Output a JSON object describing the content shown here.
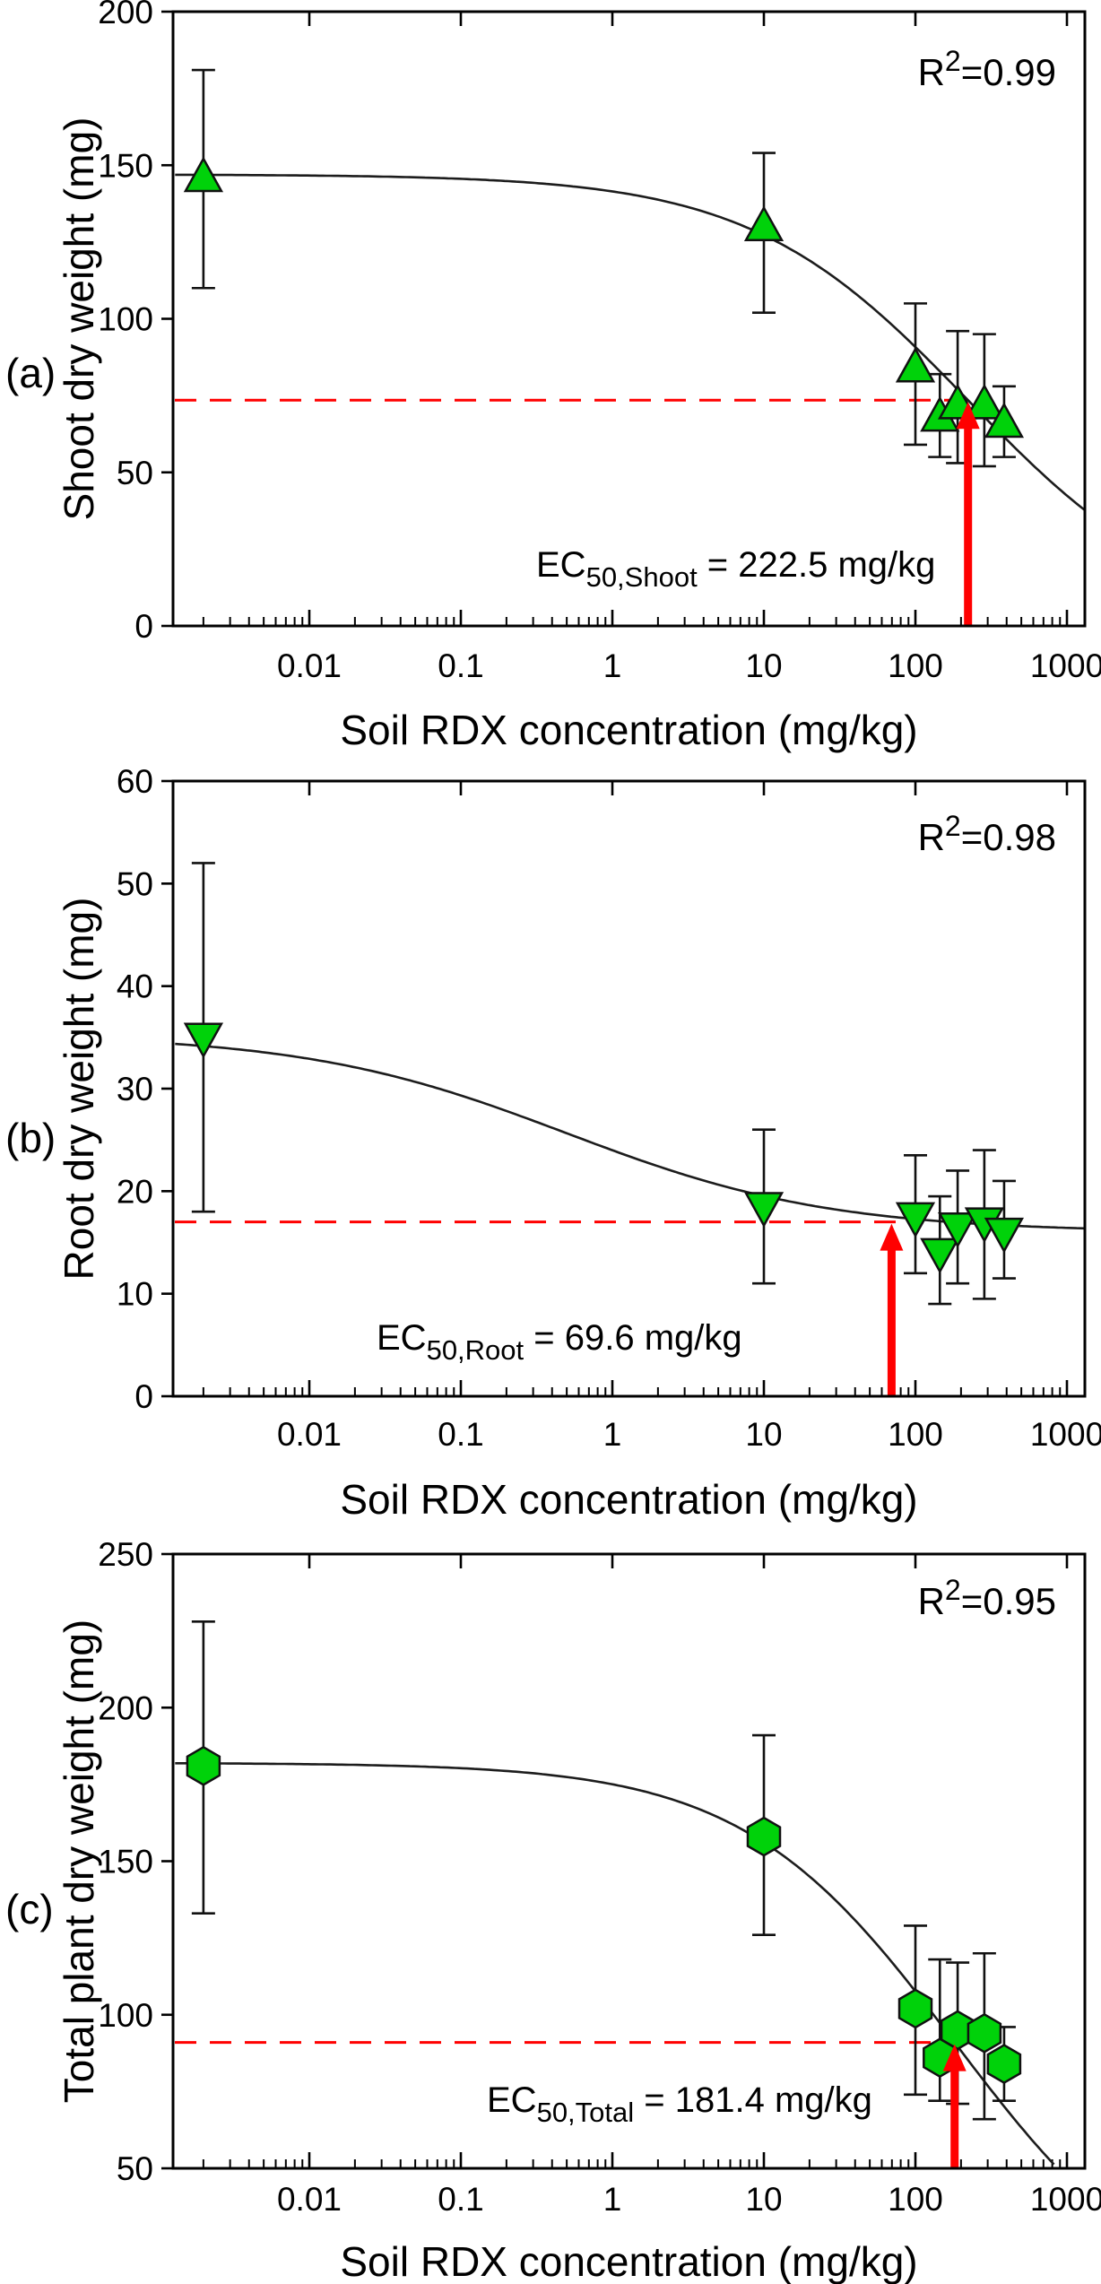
{
  "figure": {
    "description": "Three stacked dose-response scatter plots of plant dry weight vs soil RDX concentration",
    "background": "#ffffff"
  },
  "colors": {
    "marker_fill": "#00d20a",
    "marker_stroke": "#111111",
    "curve": "#1c1c1c",
    "dashed_line": "#ff0000",
    "arrow": "#ff0000",
    "frame": "#000000",
    "text": "#000000"
  },
  "chart_data": [
    {
      "panel": "a",
      "panel_label": "(a)",
      "type": "scatter",
      "x_scale": "log",
      "grid": false,
      "marker": "triangle-up",
      "r_squared": {
        "base": "R",
        "sup": "2",
        "rest": "=0.99"
      },
      "xlabel": "Soil RDX concentration (mg/kg)",
      "ylabel": "Shoot dry weight (mg)",
      "xlim": [
        0.0013,
        1300
      ],
      "ylim": [
        0,
        200
      ],
      "yticks": [
        0,
        50,
        100,
        150,
        200
      ],
      "xtick_values": [
        0.01,
        0.1,
        1,
        10,
        100,
        1000
      ],
      "xtick_labels": [
        "0.01",
        "0.1",
        "1",
        "10",
        "100",
        "1000"
      ],
      "points": [
        {
          "x": 0.002,
          "y": 146,
          "lo": 110,
          "hi": 181
        },
        {
          "x": 10,
          "y": 130,
          "lo": 102,
          "hi": 154
        },
        {
          "x": 100,
          "y": 84,
          "lo": 59,
          "hi": 105
        },
        {
          "x": 145,
          "y": 68,
          "lo": 55,
          "hi": 82
        },
        {
          "x": 190,
          "y": 72,
          "lo": 53,
          "hi": 96
        },
        {
          "x": 285,
          "y": 72,
          "lo": 52,
          "hi": 95
        },
        {
          "x": 385,
          "y": 66,
          "lo": 55,
          "hi": 78
        }
      ],
      "fit_curve": {
        "top": 147,
        "bottom": 0,
        "k": 222.5,
        "hill": 0.6
      },
      "ec50": {
        "prefix": "EC",
        "sub": "50,Shoot",
        "rest": " = 222.5 mg/kg",
        "value": 222.5,
        "units": "mg/kg"
      },
      "dashed_y": 73.5,
      "arrow_x": 222.5
    },
    {
      "panel": "b",
      "panel_label": "(b)",
      "type": "scatter",
      "x_scale": "log",
      "grid": false,
      "marker": "triangle-down",
      "r_squared": {
        "base": "R",
        "sup": "2",
        "rest": "=0.98"
      },
      "xlabel": "Soil RDX concentration (mg/kg)",
      "ylabel": "Root dry weight (mg)",
      "xlim": [
        0.0013,
        1300
      ],
      "ylim": [
        0,
        60
      ],
      "yticks": [
        0,
        10,
        20,
        30,
        40,
        50,
        60
      ],
      "xtick_values": [
        0.01,
        0.1,
        1,
        10,
        100,
        1000
      ],
      "xtick_labels": [
        "0.01",
        "0.1",
        "1",
        "10",
        "100",
        "1000"
      ],
      "points": [
        {
          "x": 0.002,
          "y": 35,
          "lo": 18,
          "hi": 52
        },
        {
          "x": 10,
          "y": 18.5,
          "lo": 11,
          "hi": 26
        },
        {
          "x": 100,
          "y": 17.5,
          "lo": 12,
          "hi": 23.5
        },
        {
          "x": 145,
          "y": 14,
          "lo": 9,
          "hi": 19.5
        },
        {
          "x": 190,
          "y": 16.5,
          "lo": 11,
          "hi": 22
        },
        {
          "x": 285,
          "y": 17,
          "lo": 9.5,
          "hi": 24
        },
        {
          "x": 385,
          "y": 16,
          "lo": 11.5,
          "hi": 21
        }
      ],
      "fit_curve": {
        "top": 35.3,
        "bottom": 16,
        "k": 0.5,
        "hill": 0.5
      },
      "ec50": {
        "prefix": "EC",
        "sub": "50,Root",
        "rest": " = 69.6 mg/kg",
        "value": 69.6,
        "units": "mg/kg"
      },
      "dashed_y": 17.0,
      "arrow_x": 69.6
    },
    {
      "panel": "c",
      "panel_label": "(c)",
      "type": "scatter",
      "x_scale": "log",
      "grid": false,
      "marker": "hexagon",
      "r_squared": {
        "base": "R",
        "sup": "2",
        "rest": "=0.95"
      },
      "xlabel": "Soil RDX concentration (mg/kg)",
      "ylabel": "Total plant dry weight (mg)",
      "xlim": [
        0.0013,
        1300
      ],
      "ylim": [
        50,
        250
      ],
      "yticks": [
        50,
        100,
        150,
        200,
        250
      ],
      "xtick_values": [
        0.01,
        0.1,
        1,
        10,
        100,
        1000
      ],
      "xtick_labels": [
        "0.01",
        "0.1",
        "1",
        "10",
        "100",
        "1000"
      ],
      "points": [
        {
          "x": 0.002,
          "y": 181,
          "lo": 133,
          "hi": 228
        },
        {
          "x": 10,
          "y": 158,
          "lo": 126,
          "hi": 191
        },
        {
          "x": 100,
          "y": 102,
          "lo": 74,
          "hi": 129
        },
        {
          "x": 145,
          "y": 86,
          "lo": 72,
          "hi": 118
        },
        {
          "x": 190,
          "y": 95,
          "lo": 71,
          "hi": 117
        },
        {
          "x": 285,
          "y": 94,
          "lo": 66,
          "hi": 120
        },
        {
          "x": 385,
          "y": 84,
          "lo": 72,
          "hi": 96
        }
      ],
      "fit_curve": {
        "top": 182,
        "bottom": 0,
        "k": 181.4,
        "hill": 0.62
      },
      "ec50": {
        "prefix": "EC",
        "sub": "50,Total",
        "rest": " = 181.4 mg/kg",
        "value": 181.4,
        "units": "mg/kg"
      },
      "dashed_y": 91,
      "arrow_x": 181.4
    }
  ]
}
